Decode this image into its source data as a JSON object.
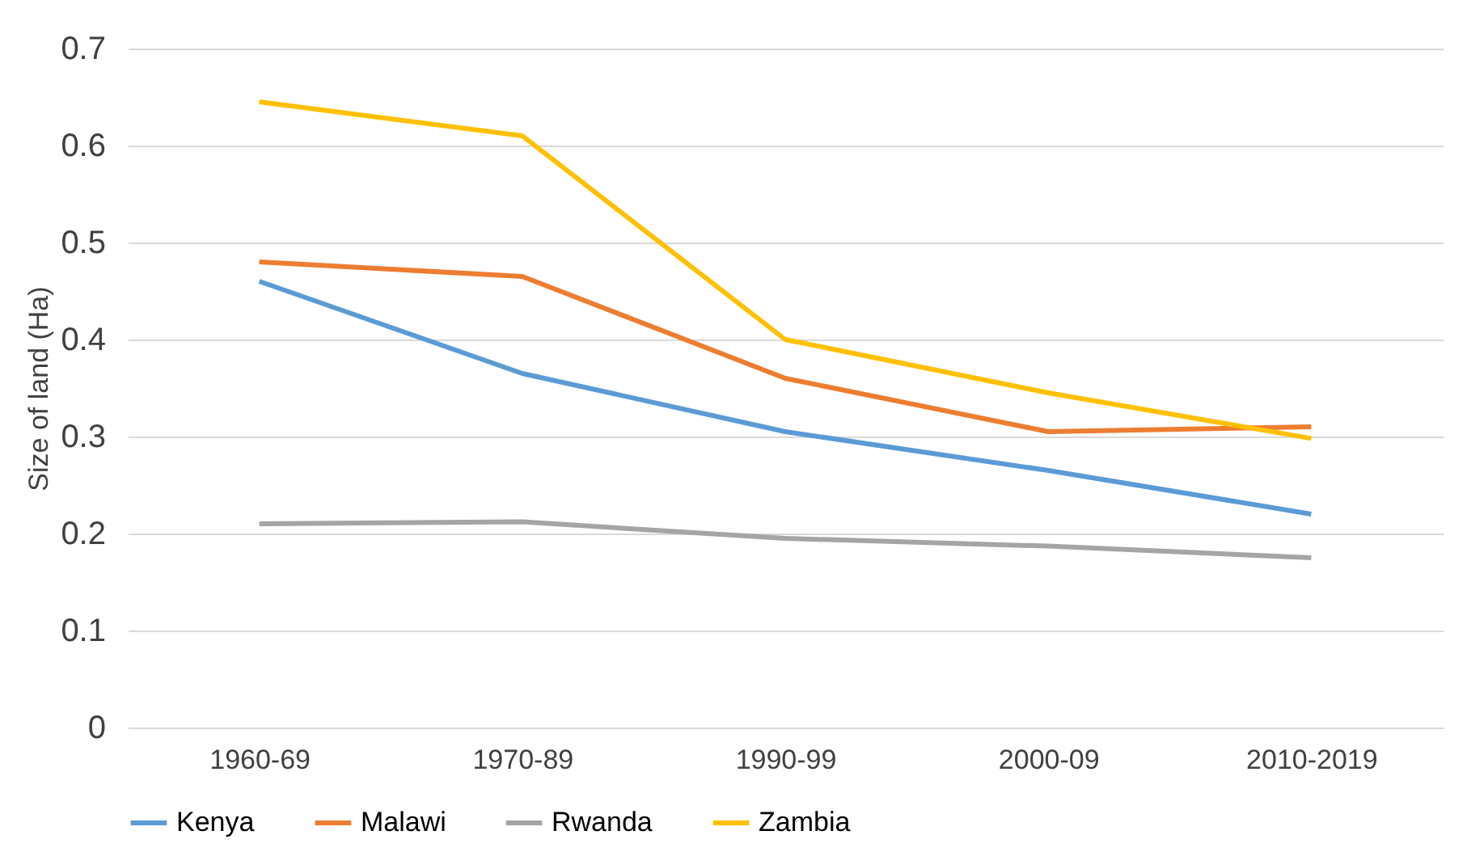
{
  "chart_data": {
    "type": "line",
    "ylabel": "Size of land (Ha)",
    "categories": [
      "1960-69",
      "1970-89",
      "1990-99",
      "2000-09",
      "2010-2019"
    ],
    "series": [
      {
        "name": "Kenya",
        "color": "#5b9bd5",
        "values": [
          0.46,
          0.365,
          0.305,
          0.265,
          0.22
        ]
      },
      {
        "name": "Malawi",
        "color": "#ed7d31",
        "values": [
          0.48,
          0.465,
          0.36,
          0.305,
          0.31
        ]
      },
      {
        "name": "Rwanda",
        "color": "#a5a5a5",
        "values": [
          0.21,
          0.212,
          0.195,
          0.187,
          0.175
        ]
      },
      {
        "name": "Zambia",
        "color": "#ffc000",
        "values": [
          0.645,
          0.61,
          0.4,
          0.345,
          0.298
        ]
      }
    ],
    "ylim": [
      0,
      0.7
    ],
    "yticks": [
      0,
      0.1,
      0.2,
      0.3,
      0.4,
      0.5,
      0.6,
      0.7
    ],
    "grid": "y",
    "legend": "bottom",
    "marker": "none",
    "line_style": "solid"
  }
}
